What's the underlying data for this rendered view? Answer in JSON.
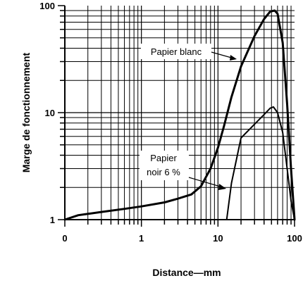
{
  "chart_data": {
    "type": "line",
    "title": "",
    "xlabel": "Distance—mm",
    "ylabel": "Marge de fonctionnement",
    "xscale": "log",
    "yscale": "log",
    "xlim": [
      0.1,
      100
    ],
    "ylim": [
      1,
      100
    ],
    "grid": true,
    "x_ticks": [
      {
        "value": 0.1,
        "label": "0"
      },
      {
        "value": 1,
        "label": "1"
      },
      {
        "value": 10,
        "label": "10"
      },
      {
        "value": 100,
        "label": "100"
      }
    ],
    "y_ticks": [
      {
        "value": 1,
        "label": "1"
      },
      {
        "value": 10,
        "label": "10"
      },
      {
        "value": 100,
        "label": "100"
      }
    ],
    "series": [
      {
        "name": "Papier blanc",
        "x": [
          0.1,
          0.15,
          0.3,
          0.6,
          1.0,
          2.0,
          3.0,
          4.5,
          6.0,
          8.0,
          10.0,
          12.0,
          15.0,
          20.0,
          30.0,
          40.0,
          48.0,
          55.0,
          60.0,
          70.0,
          80.0,
          90.0,
          100.0
        ],
        "values": [
          1.0,
          1.1,
          1.18,
          1.26,
          1.33,
          1.45,
          1.57,
          1.72,
          2.05,
          3.0,
          4.7,
          7.5,
          14.0,
          27.0,
          52.0,
          75.0,
          88.0,
          90.0,
          84.0,
          45.0,
          12.0,
          3.0,
          1.0
        ]
      },
      {
        "name": "Papier noir 6 %",
        "x": [
          13.0,
          15.0,
          20.0,
          30.0,
          40.0,
          48.0,
          53.0,
          60.0,
          70.0,
          80.0,
          90.0,
          100.0
        ],
        "values": [
          1.0,
          2.2,
          5.8,
          7.8,
          9.6,
          11.0,
          11.3,
          10.0,
          6.5,
          3.0,
          1.5,
          1.0
        ]
      }
    ],
    "annotations": [
      {
        "text": "Papier blanc",
        "series": "Papier blanc",
        "x": 48.0,
        "y": 88.0
      },
      {
        "text": "Papier",
        "series": "Papier noir 6 %",
        "x": 16.0,
        "y": 3.0
      },
      {
        "text": "noir 6 %",
        "series": "Papier noir 6 %",
        "x": 16.0,
        "y": 3.0
      }
    ]
  }
}
